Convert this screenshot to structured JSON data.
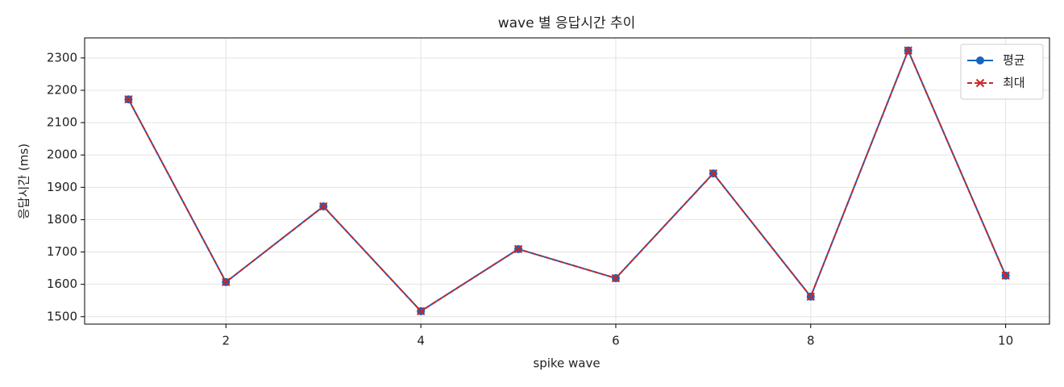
{
  "chart_data": {
    "type": "line",
    "title": "wave 별 응답시간 추이",
    "x_label": "spike wave",
    "y_label": "응답시간 (ms)",
    "x": [
      1,
      2,
      3,
      4,
      5,
      6,
      7,
      8,
      9,
      10
    ],
    "series": [
      {
        "name": "평균",
        "color": "#1565c0",
        "marker": "circle",
        "dash": false,
        "values": [
          2172,
          1607,
          1841,
          1517,
          1709,
          1619,
          1943,
          1562,
          2323,
          1627
        ]
      },
      {
        "name": "최대",
        "color": "#c62828",
        "marker": "x",
        "dash": true,
        "values": [
          2172,
          1607,
          1841,
          1517,
          1709,
          1619,
          1943,
          1562,
          2323,
          1627
        ]
      }
    ],
    "xlim": [
      0.55,
      10.45
    ],
    "xticks": [
      2,
      4,
      6,
      8,
      10
    ],
    "ylim": [
      1477,
      2362
    ],
    "yticks": [
      1500,
      1600,
      1700,
      1800,
      1900,
      2000,
      2100,
      2200,
      2300
    ],
    "grid": true,
    "legend": "upper right"
  }
}
